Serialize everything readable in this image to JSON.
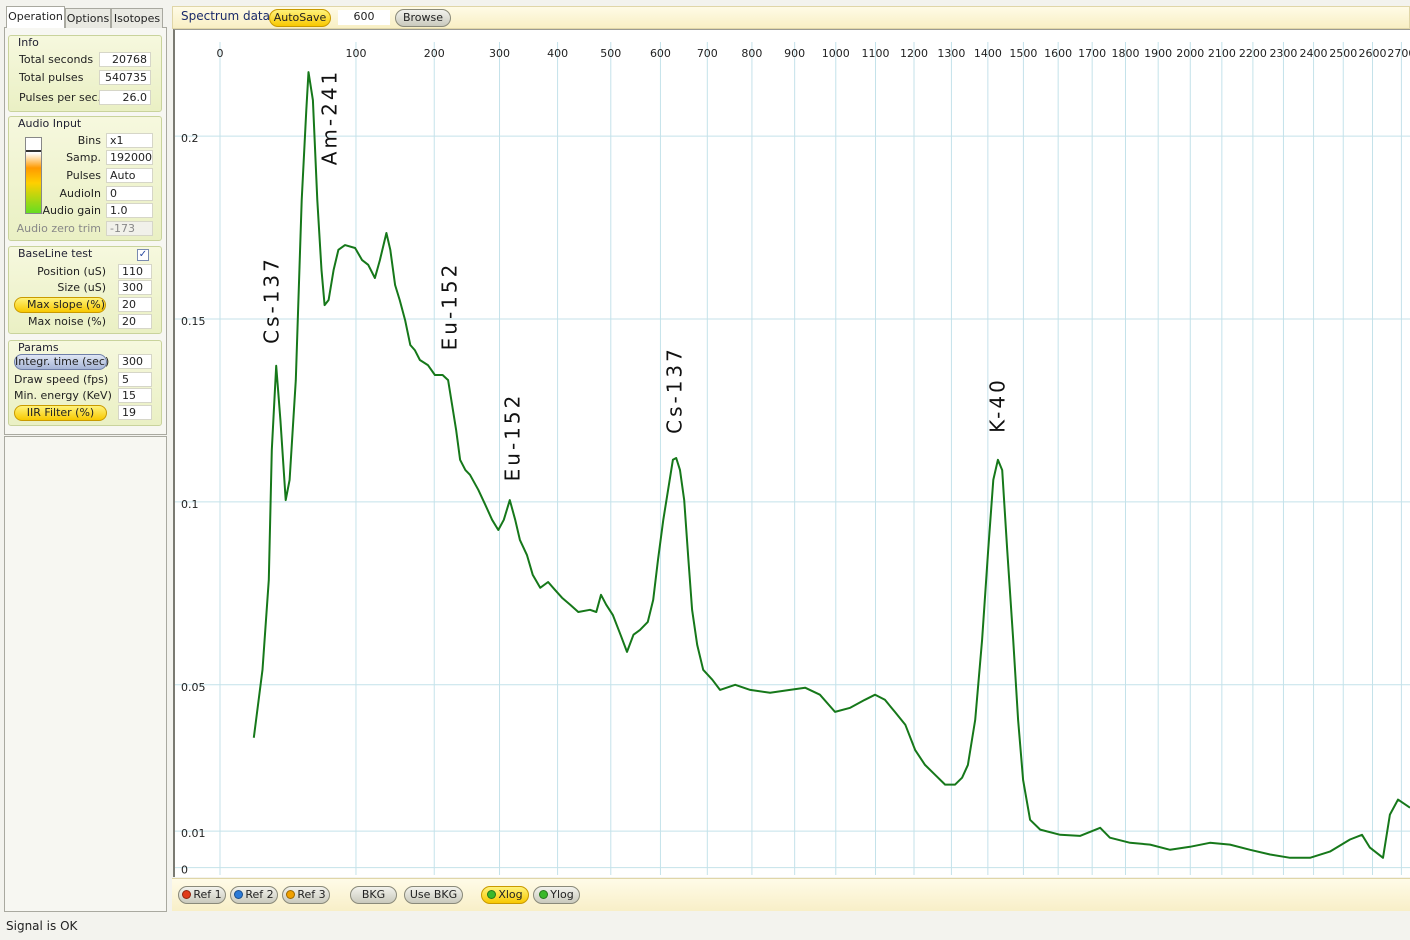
{
  "tabs": [
    "Operation",
    "Options",
    "Isotopes"
  ],
  "info": {
    "title": "Info",
    "rows": [
      {
        "label": "Total seconds",
        "value": "20768"
      },
      {
        "label": "Total pulses",
        "value": "540735"
      },
      {
        "label": "Pulses per sec.",
        "value": "26.0"
      }
    ]
  },
  "audio_input": {
    "title": "Audio Input",
    "rows": [
      {
        "label": "Bins",
        "value": "x1"
      },
      {
        "label": "Samp.",
        "value": "192000"
      },
      {
        "label": "Pulses",
        "value": "Auto"
      },
      {
        "label": "AudioIn",
        "value": "0"
      },
      {
        "label": "Audio gain",
        "value": "1.0"
      },
      {
        "label": "Audio zero trim",
        "value": "-173"
      }
    ]
  },
  "baseline_test": {
    "title": "BaseLine test",
    "rows": [
      {
        "label": "Position (uS)",
        "value": "110"
      },
      {
        "label": "Size (uS)",
        "value": "300"
      },
      {
        "label": "Max slope (%)",
        "value": "20"
      },
      {
        "label": "Max noise (%)",
        "value": "20"
      }
    ]
  },
  "params": {
    "title": "Params",
    "rows": [
      {
        "label": "Integr. time (sec)",
        "value": "300"
      },
      {
        "label": "Draw speed (fps)",
        "value": "5"
      },
      {
        "label": "Min. energy (KeV)",
        "value": "15"
      },
      {
        "label": "IIR Filter (%)",
        "value": "19"
      }
    ]
  },
  "toolbar": {
    "title": "Spectrum data",
    "autosave": "AutoSave",
    "value": "600",
    "browse": "Browse"
  },
  "chart_data": {
    "type": "line",
    "color": "#16781a",
    "grid": true,
    "x": [
      12,
      17,
      21,
      23,
      26,
      29,
      33,
      36,
      41,
      46,
      50,
      52,
      56,
      60,
      64,
      67,
      71,
      76,
      81,
      88,
      99,
      107,
      114,
      122,
      128,
      136,
      141,
      147,
      153,
      160,
      167,
      173,
      180,
      191,
      201,
      212,
      220,
      226,
      232,
      238,
      246,
      253,
      266,
      277,
      288,
      298,
      307,
      317,
      326,
      334,
      346,
      356,
      369,
      383,
      395,
      408,
      423,
      438,
      460,
      472,
      481,
      491,
      504,
      519,
      532,
      545,
      558,
      574,
      585,
      595,
      606,
      616,
      626,
      633,
      641,
      650,
      659,
      667,
      678,
      691,
      711,
      728,
      762,
      796,
      842,
      889,
      925,
      961,
      998,
      1036,
      1073,
      1099,
      1124,
      1150,
      1177,
      1203,
      1229,
      1256,
      1283,
      1310,
      1329,
      1345,
      1365,
      1384,
      1401,
      1415,
      1428,
      1440,
      1454,
      1471,
      1485,
      1499,
      1519,
      1548,
      1606,
      1664,
      1724,
      1753,
      1814,
      1875,
      1937,
      1999,
      2062,
      2126,
      2191,
      2256,
      2322,
      2388,
      2455,
      2523,
      2564,
      2591,
      2636,
      2660,
      2688,
      2730
    ],
    "values": [
      0.0355,
      0.0541,
      0.0787,
      0.1142,
      0.1372,
      0.1224,
      0.1005,
      0.106,
      0.1333,
      0.1825,
      0.2071,
      0.2175,
      0.2098,
      0.1825,
      0.1634,
      0.1538,
      0.1552,
      0.1634,
      0.1689,
      0.1702,
      0.1694,
      0.1661,
      0.1648,
      0.1612,
      0.1661,
      0.1735,
      0.1689,
      0.1593,
      0.1552,
      0.1497,
      0.1429,
      0.1415,
      0.1388,
      0.1374,
      0.1347,
      0.1347,
      0.1333,
      0.1265,
      0.1197,
      0.1115,
      0.1087,
      0.1074,
      0.1033,
      0.0992,
      0.0951,
      0.0923,
      0.0951,
      0.1005,
      0.0951,
      0.0896,
      0.0855,
      0.0801,
      0.0765,
      0.0781,
      0.076,
      0.0738,
      0.0719,
      0.0699,
      0.0705,
      0.0699,
      0.0746,
      0.0719,
      0.0691,
      0.0637,
      0.059,
      0.0637,
      0.065,
      0.0672,
      0.0732,
      0.0842,
      0.0951,
      0.1033,
      0.1115,
      0.112,
      0.1087,
      0.1005,
      0.0842,
      0.0705,
      0.0609,
      0.0541,
      0.0514,
      0.0486,
      0.05,
      0.0486,
      0.0478,
      0.0486,
      0.0492,
      0.0473,
      0.0426,
      0.0437,
      0.0459,
      0.0473,
      0.0459,
      0.0426,
      0.0391,
      0.0322,
      0.0281,
      0.0254,
      0.0227,
      0.0227,
      0.0246,
      0.0281,
      0.0404,
      0.0623,
      0.0869,
      0.106,
      0.1115,
      0.1087,
      0.0869,
      0.0623,
      0.0404,
      0.024,
      0.0131,
      0.0104,
      0.009,
      0.0087,
      0.0109,
      0.0082,
      0.0068,
      0.0063,
      0.0049,
      0.0057,
      0.0068,
      0.0063,
      0.0049,
      0.0036,
      0.0027,
      0.0027,
      0.0044,
      0.0077,
      0.009,
      0.0055,
      0.0027,
      0.0145,
      0.0186,
      0.0164
    ],
    "xlim": [
      0,
      2730
    ],
    "xticks": [
      0,
      100,
      200,
      300,
      400,
      500,
      600,
      700,
      800,
      900,
      1000,
      1100,
      1200,
      1300,
      1400,
      1500,
      1600,
      1700,
      1800,
      1900,
      2000,
      2100,
      2200,
      2300,
      2400,
      2500,
      2600,
      2700
    ],
    "ylim": [
      -0.002,
      0.229
    ],
    "yticks": [
      0,
      0.01,
      0.05,
      0.1,
      0.15,
      0.2
    ],
    "annotations": [
      "Cs-137",
      "Am-241",
      "Eu-152",
      "Eu-152",
      "Cs-137",
      "K-40"
    ]
  },
  "bottom_buttons": [
    "Ref 1",
    "Ref 2",
    "Ref 3",
    "BKG",
    "Use BKG",
    "Xlog",
    "Ylog"
  ],
  "status": "Signal is OK"
}
